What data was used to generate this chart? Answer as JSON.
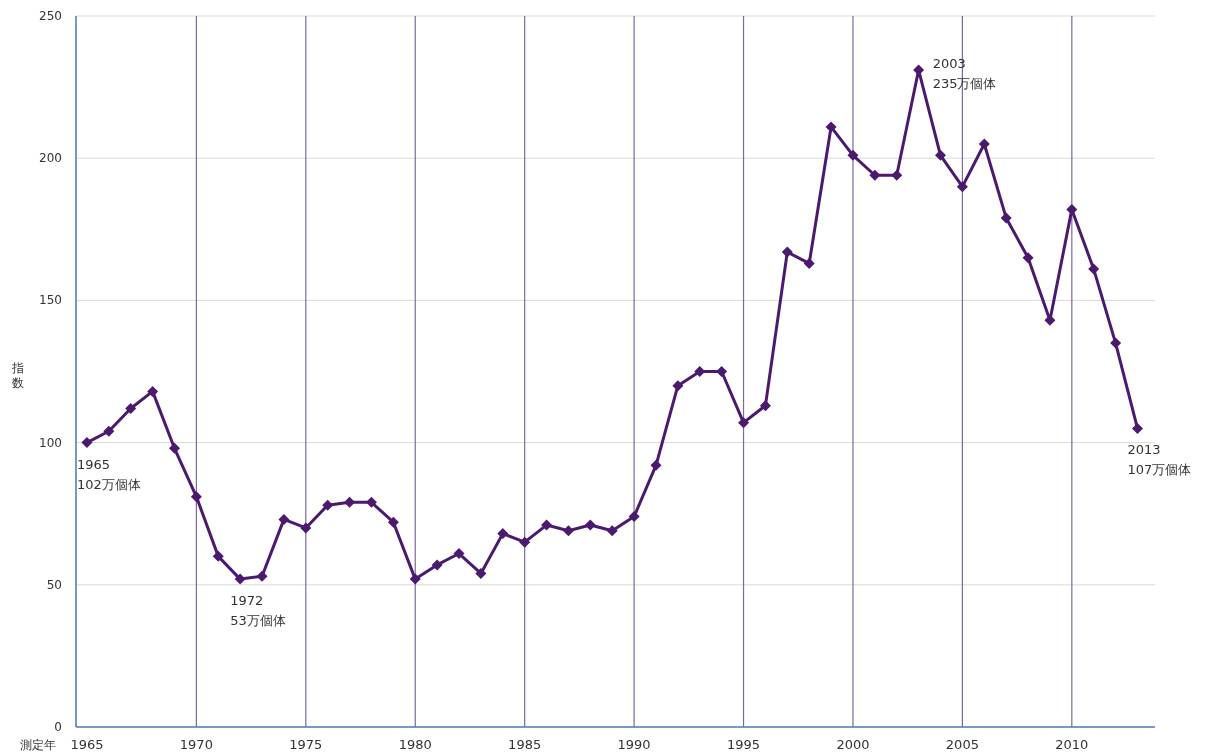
{
  "chart_data": {
    "type": "line",
    "xlabel": "測定年",
    "ylabel": "指数",
    "x": [
      1965,
      1966,
      1967,
      1968,
      1969,
      1970,
      1971,
      1972,
      1973,
      1974,
      1975,
      1976,
      1977,
      1978,
      1979,
      1980,
      1981,
      1982,
      1983,
      1984,
      1985,
      1986,
      1987,
      1988,
      1989,
      1990,
      1991,
      1992,
      1993,
      1994,
      1995,
      1996,
      1997,
      1998,
      1999,
      2000,
      2001,
      2002,
      2003,
      2004,
      2005,
      2006,
      2007,
      2008,
      2009,
      2010,
      2011,
      2012,
      2013
    ],
    "series": [
      {
        "color": "#4b1a6e",
        "values": [
          100,
          104,
          112,
          118,
          98,
          81,
          60,
          52,
          53,
          73,
          70,
          78,
          79,
          79,
          72,
          52,
          57,
          61,
          54,
          68,
          65,
          71,
          69,
          71,
          69,
          74,
          92,
          120,
          125,
          125,
          107,
          113,
          167,
          163,
          211,
          201,
          194,
          194,
          231,
          201,
          190,
          205,
          179,
          165,
          143,
          182,
          161,
          135,
          105
        ]
      }
    ],
    "xlim": [
      1964.5,
      2013.8
    ],
    "xticks": [
      1965,
      1970,
      1975,
      1980,
      1985,
      1990,
      1995,
      2000,
      2005,
      2010
    ],
    "ylim": [
      0,
      250
    ],
    "yticks": [
      0,
      50,
      100,
      150,
      200,
      250
    ],
    "grid": true,
    "marker": "diamond",
    "line_style": "solid",
    "annotations": [
      {
        "text": "1965\n102万個体",
        "x": 1965,
        "y": 100
      },
      {
        "text": "1972\n53万個体",
        "x": 1972,
        "y": 52
      },
      {
        "text": "2003\n235万個体",
        "x": 2003,
        "y": 231
      },
      {
        "text": "2013\n107万個体",
        "x": 2013,
        "y": 105
      }
    ]
  }
}
